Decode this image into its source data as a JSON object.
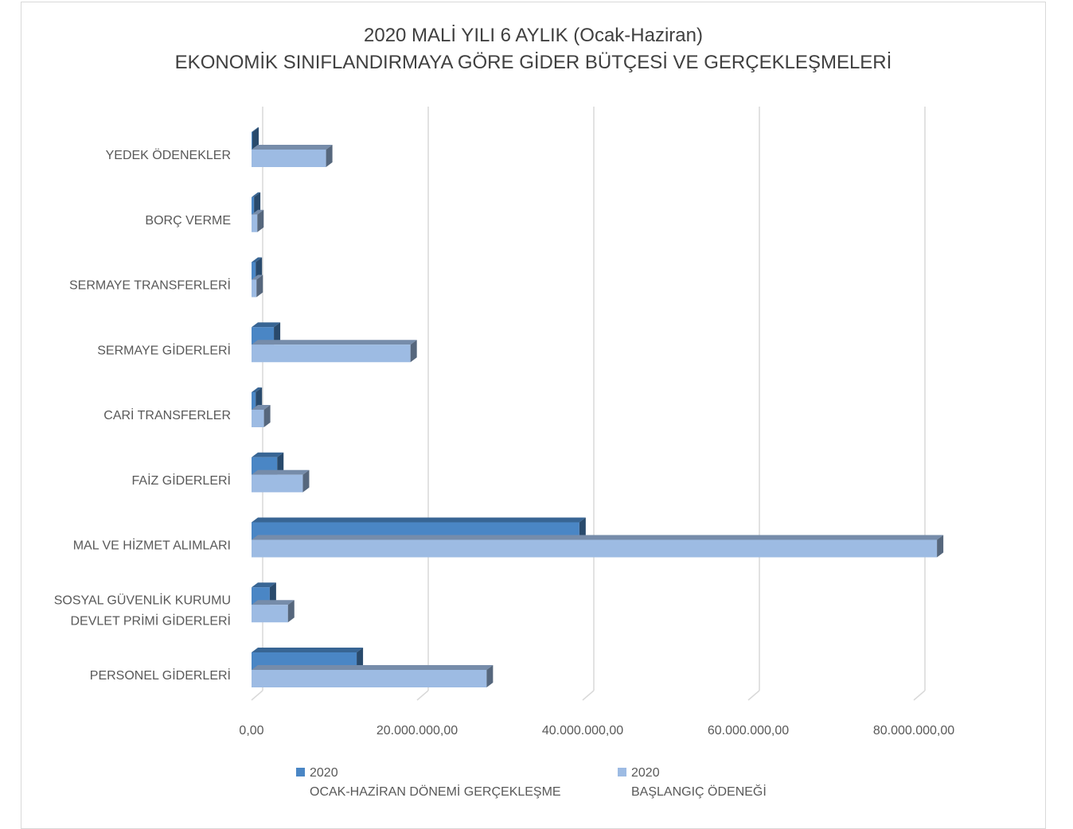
{
  "chart_data": {
    "type": "bar",
    "orientation": "horizontal",
    "title_line1": "2020 MALİ YILI 6 AYLIK (Ocak-Haziran)",
    "title_line2": "EKONOMİK SINIFLANDIRMAYA GÖRE GİDER BÜTÇESİ VE GERÇEKLEŞMELERİ",
    "categories": [
      "PERSONEL GİDERLERİ",
      "SOSYAL GÜVENLİK KURUMU DEVLET PRİMİ GİDERLERİ",
      "MAL VE HİZMET ALIMLARI",
      "FAİZ GİDERLERİ",
      "CARİ TRANSFERLER",
      "SERMAYE GİDERLERİ",
      "SERMAYE TRANSFERLERİ",
      "BORÇ VERME",
      "YEDEK ÖDENEKLER"
    ],
    "category_lines": [
      [
        "PERSONEL GİDERLERİ"
      ],
      [
        "SOSYAL GÜVENLİK KURUMU",
        "DEVLET PRİMİ GİDERLERİ"
      ],
      [
        "MAL VE HİZMET ALIMLARI"
      ],
      [
        "FAİZ GİDERLERİ"
      ],
      [
        "CARİ TRANSFERLER"
      ],
      [
        "SERMAYE GİDERLERİ"
      ],
      [
        "SERMAYE TRANSFERLERİ"
      ],
      [
        "BORÇ VERME"
      ],
      [
        "YEDEK ÖDENEKLER"
      ]
    ],
    "series": [
      {
        "name_line1": "2020",
        "name_line2": "OCAK-HAZİRAN DÖNEMİ GERÇEKLEŞME",
        "color": "#4a86c5",
        "values": [
          12700000,
          2200000,
          39600000,
          3100000,
          500000,
          2700000,
          500000,
          300000,
          100000
        ]
      },
      {
        "name_line1": "2020",
        "name_line2": "BAŞLANGIÇ ÖDENEĞİ",
        "color": "#9dbbe3",
        "values": [
          28400000,
          4400000,
          82800000,
          6200000,
          1500000,
          19200000,
          600000,
          700000,
          9000000
        ]
      }
    ],
    "x_ticks": [
      "0,00",
      "20.000.000,00",
      "40.000.000,00",
      "60.000.000,00",
      "80.000.000,00"
    ],
    "xlim": [
      0,
      80000000
    ],
    "grid": "vertical",
    "legend_position": "bottom"
  }
}
